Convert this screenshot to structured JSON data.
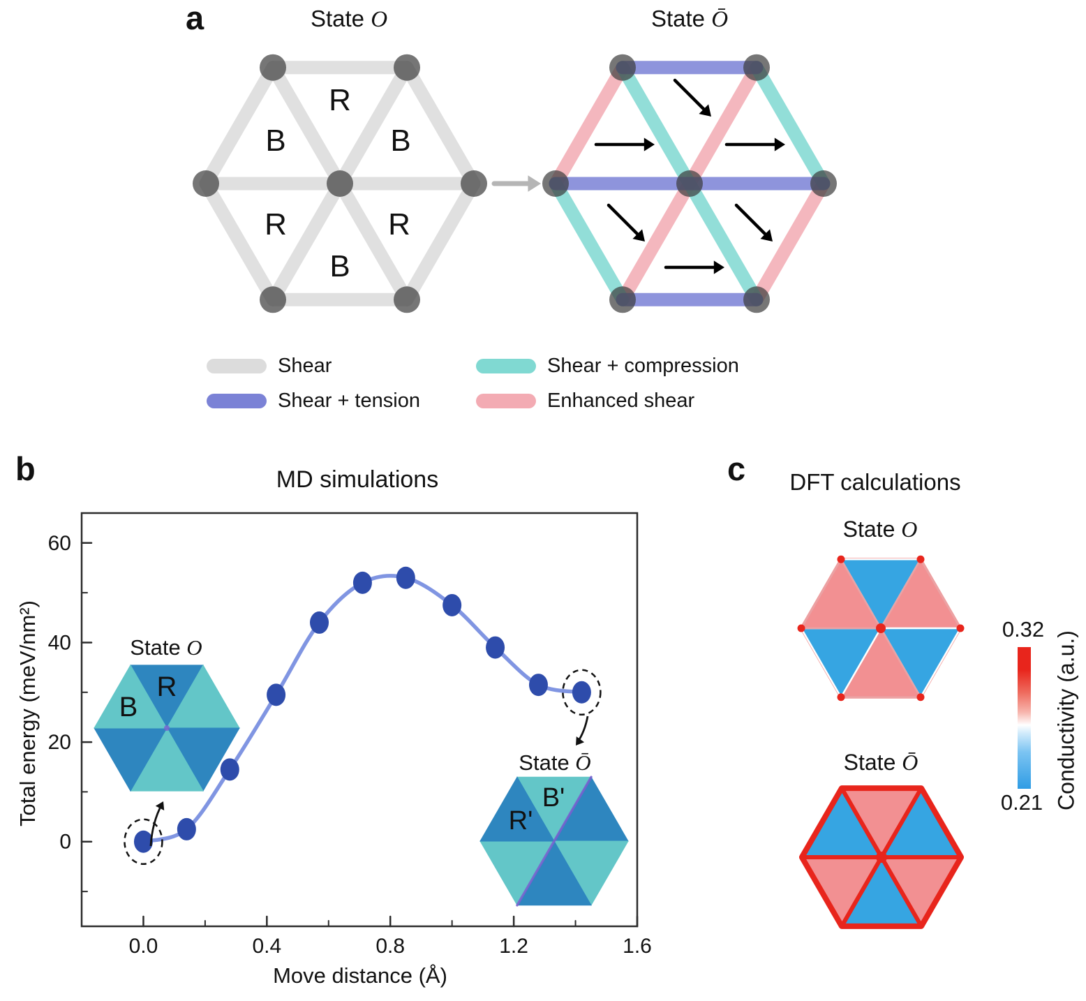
{
  "states": {
    "o": {
      "prefix": "State ",
      "symbol": "O"
    },
    "obar": {
      "prefix": "State ",
      "symbol": "Ō"
    }
  },
  "panel_a": {
    "label": "a",
    "triangle_labels": {
      "top": "R",
      "upper_left": "B",
      "upper_right": "B",
      "lower_left": "R",
      "lower_right": "R",
      "bottom": "B"
    },
    "obar_arrows": {
      "top": "se",
      "upper_left": "e",
      "upper_right": "e",
      "lower_left": "se",
      "lower_right": "se",
      "bottom": "e"
    },
    "legend": [
      {
        "label": "Shear",
        "color": "#dcdcdc"
      },
      {
        "label": "Shear + tension",
        "color": "#7b82d6"
      },
      {
        "label": "Shear + compression",
        "color": "#80d9d2"
      },
      {
        "label": "Enhanced shear",
        "color": "#f3abb3"
      }
    ]
  },
  "panel_b": {
    "label": "b",
    "inset_o": {
      "label_b": "B",
      "label_r": "R"
    },
    "inset_obar": {
      "label_r": "R'",
      "label_b": "B'"
    }
  },
  "panel_c": {
    "label": "c",
    "title": "DFT calculations",
    "colorbar": {
      "top_value": "0.32",
      "bottom_value": "0.21",
      "label": "Conductivity (a.u.)"
    }
  },
  "chart_data": {
    "type": "line",
    "title": "MD simulations",
    "xlabel": "Move distance (Å)",
    "ylabel": "Total energy (meV/nm²)",
    "x": [
      0.0,
      0.14,
      0.28,
      0.43,
      0.57,
      0.71,
      0.85,
      1.0,
      1.14,
      1.28,
      1.42
    ],
    "y": [
      0,
      2.5,
      14.5,
      29.5,
      44,
      52,
      53,
      47.5,
      39,
      31.5,
      30
    ],
    "xlim": [
      -0.2,
      1.6
    ],
    "ylim": [
      -17,
      66
    ],
    "xticks": [
      0.0,
      0.4,
      0.8,
      1.2,
      1.6
    ],
    "xtick_labels": [
      "0.0",
      "0.4",
      "0.8",
      "1.2",
      "1.6"
    ],
    "minor_xticks": [
      0.2,
      0.6,
      1.0,
      1.4
    ],
    "yticks": [
      0,
      20,
      40,
      60
    ],
    "ytick_labels": [
      "0",
      "20",
      "40",
      "60"
    ],
    "minor_yticks": [
      -10,
      10,
      30,
      50
    ],
    "grid": false,
    "circled_point_indices": [
      0,
      10
    ],
    "annotations": [
      "State O at start point",
      "State Ō at end point"
    ]
  },
  "colors": {
    "bond_shear": "#e0e0e0",
    "bond_tension": "#7b82d6",
    "bond_compression": "#80d9d2",
    "bond_enhanced": "#f3abb3",
    "node": "#3c3c3c",
    "transition_arrow": "#b5b5b5",
    "marker": "#2e4cab",
    "line": "#8095e2",
    "inset_dark": "#2e86bf",
    "inset_light": "#63c6c8",
    "inset_wall": "#7a5fd0",
    "dft_pink": "#f29092",
    "dft_blue": "#36a5e2",
    "dft_red": "#e8251c",
    "cbar_gradient": [
      "#e8251c",
      "#ee6b5e",
      "#f7b5ad",
      "#ffffff",
      "#cfeafb",
      "#7cc4f2",
      "#2f9ce4"
    ]
  }
}
